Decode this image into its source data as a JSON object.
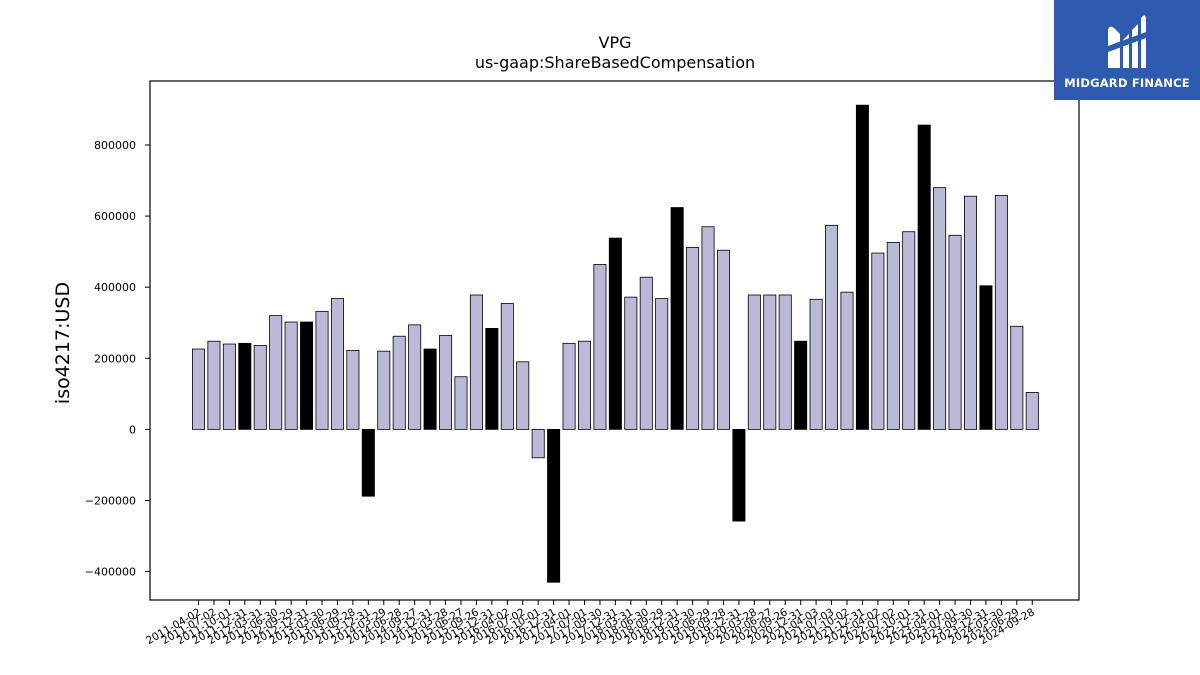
{
  "logo": {
    "text": "MIDGARD FINANCE",
    "background": "#2e5bb0"
  },
  "chart_data": {
    "type": "bar",
    "title": "VPG",
    "subtitle": "us-gaap:ShareBasedCompensation",
    "xlabel": "",
    "ylabel": "iso4217:USD",
    "ylim": [
      -480000,
      980000
    ],
    "yticks": [
      -400000,
      -200000,
      0,
      200000,
      400000,
      600000,
      800000
    ],
    "ytick_labels": [
      "−400000",
      "−200000",
      "0",
      "200000",
      "400000",
      "600000",
      "800000"
    ],
    "grid": false,
    "colors": {
      "light": "#bcb8d8",
      "dark": "#000000",
      "edge": "#000000"
    },
    "categories": [
      "2011-04-02",
      "2011-07-02",
      "2011-10-01",
      "2011-12-31",
      "2012-03-31",
      "2012-06-30",
      "2012-09-29",
      "2012-12-31",
      "2013-03-30",
      "2013-06-29",
      "2013-09-28",
      "2013-12-31",
      "2014-03-29",
      "2014-06-28",
      "2014-09-27",
      "2014-12-31",
      "2015-03-28",
      "2015-06-27",
      "2015-09-26",
      "2015-12-31",
      "2016-04-02",
      "2016-07-02",
      "2016-10-01",
      "2016-12-31",
      "2017-04-01",
      "2017-07-01",
      "2017-09-30",
      "2017-12-31",
      "2018-03-31",
      "2018-06-30",
      "2018-09-29",
      "2018-12-31",
      "2019-03-30",
      "2019-06-29",
      "2019-09-28",
      "2019-12-31",
      "2020-03-28",
      "2020-06-27",
      "2020-09-26",
      "2020-12-31",
      "2021-04-03",
      "2021-07-03",
      "2021-10-02",
      "2021-12-31",
      "2022-04-02",
      "2022-07-02",
      "2022-10-01",
      "2022-12-31",
      "2023-04-01",
      "2023-07-01",
      "2023-09-30",
      "2023-12-31",
      "2024-03-30",
      "2024-06-29",
      "2024-09-28"
    ],
    "values": [
      226000,
      248000,
      240000,
      242000,
      236000,
      320000,
      302000,
      302000,
      332000,
      368000,
      222000,
      -188000,
      220000,
      262000,
      294000,
      226000,
      264000,
      148000,
      378000,
      284000,
      354000,
      190000,
      -80000,
      -430000,
      242000,
      248000,
      464000,
      538000,
      372000,
      428000,
      368000,
      624000,
      512000,
      570000,
      504000,
      -258000,
      378000,
      378000,
      378000,
      248000,
      366000,
      574000,
      386000,
      912000,
      496000,
      526000,
      556000,
      856000,
      680000,
      546000,
      656000,
      404000,
      658000,
      290000,
      104000
    ],
    "highlight": [
      false,
      false,
      false,
      true,
      false,
      false,
      false,
      true,
      false,
      false,
      false,
      true,
      false,
      false,
      false,
      true,
      false,
      false,
      false,
      true,
      false,
      false,
      false,
      true,
      false,
      false,
      false,
      true,
      false,
      false,
      false,
      true,
      false,
      false,
      false,
      true,
      false,
      false,
      false,
      true,
      false,
      false,
      false,
      true,
      false,
      false,
      false,
      true,
      false,
      false,
      false,
      true,
      false,
      false,
      false
    ]
  }
}
